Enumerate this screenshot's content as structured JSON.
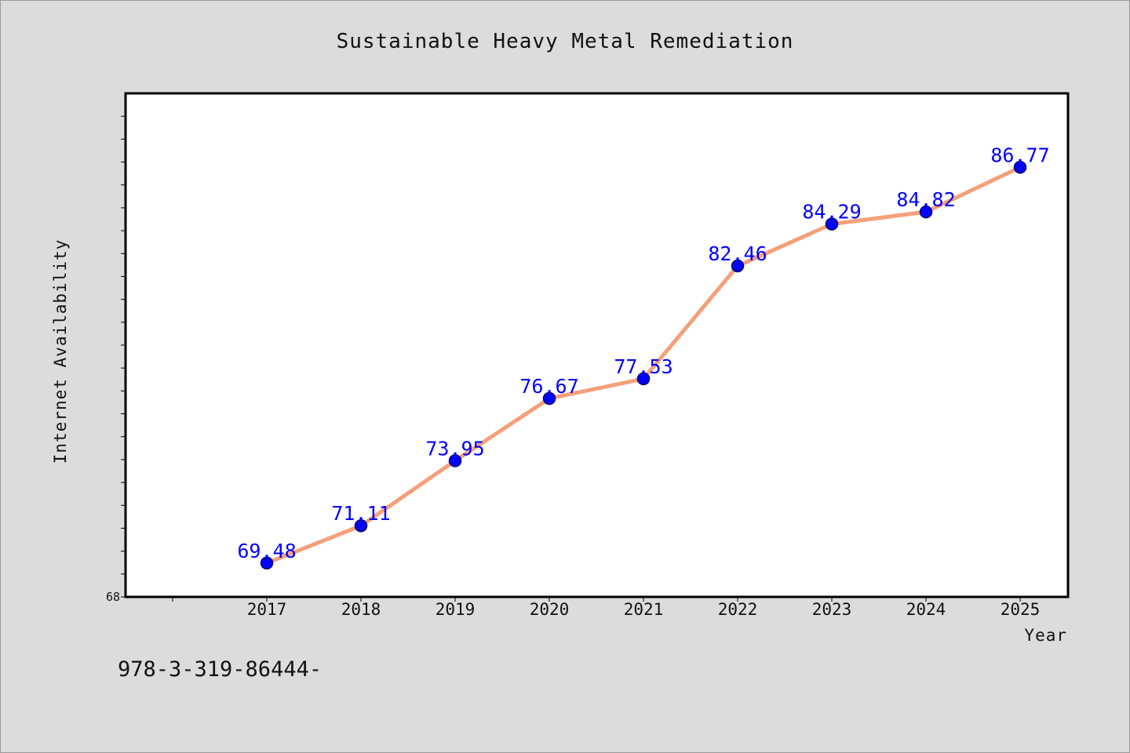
{
  "chart_data": {
    "type": "line",
    "title": "Sustainable Heavy Metal Remediation",
    "xlabel": "Year",
    "ylabel": "Internet Availability",
    "categories": [
      "2017",
      "2018",
      "2019",
      "2020",
      "2021",
      "2022",
      "2023",
      "2024",
      "2025"
    ],
    "series": [
      {
        "values": [
          69.48,
          71.11,
          73.95,
          76.67,
          77.53,
          82.46,
          84.29,
          84.82,
          86.77
        ],
        "labels": [
          "69.48",
          "71.11",
          "73.95",
          "76.67",
          "77.53",
          "82.46",
          "84.29",
          "84.82",
          "86.77"
        ],
        "line_color": "#f4a07a",
        "marker_color": "#0000ff"
      }
    ],
    "y_tick_labels": [
      "68"
    ],
    "ylim": [
      68,
      90
    ],
    "grid": false,
    "legend": "none",
    "background": "#dcdcdc",
    "plot_background": "#ffffff"
  },
  "footnote": "978-3-319-86444-"
}
